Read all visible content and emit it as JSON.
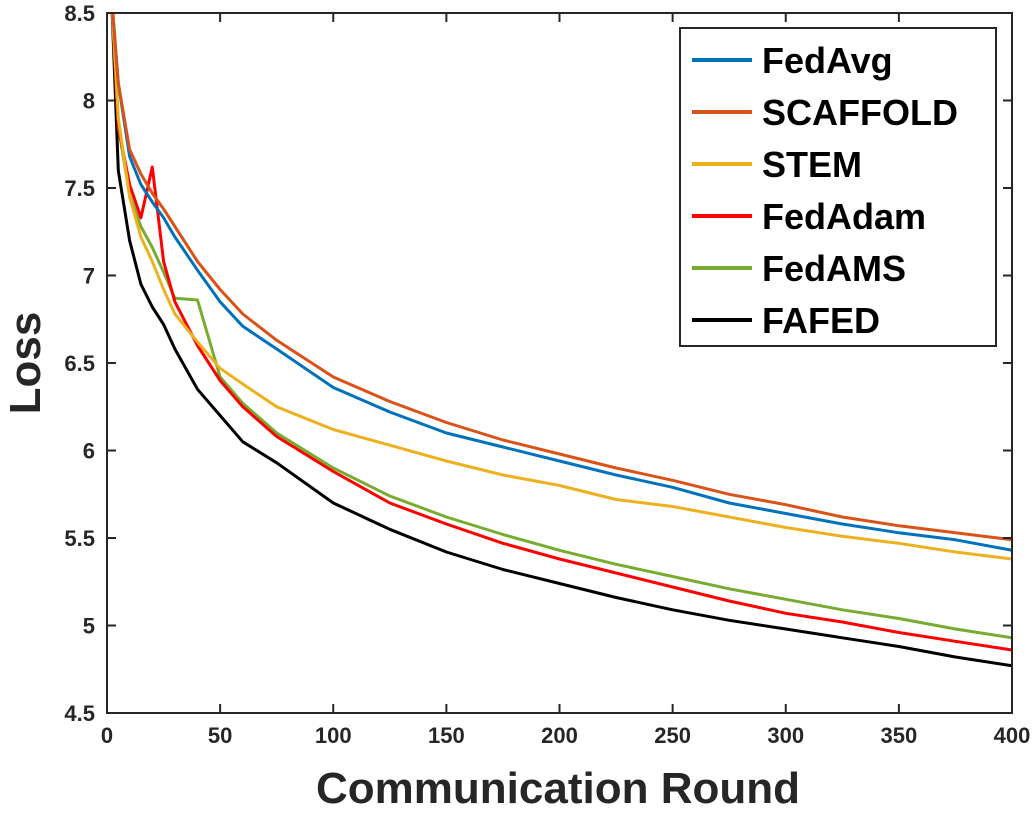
{
  "chart_data": {
    "type": "line",
    "title": "",
    "xlabel": "Communication Round",
    "ylabel": "Loss",
    "xlim": [
      0,
      400
    ],
    "ylim": [
      4.5,
      8.5
    ],
    "xticks": [
      0,
      50,
      100,
      150,
      200,
      250,
      300,
      350,
      400
    ],
    "yticks": [
      4.5,
      5,
      5.5,
      6,
      6.5,
      7,
      7.5,
      8,
      8.5
    ],
    "xtick_labels": [
      "0",
      "50",
      "100",
      "150",
      "200",
      "250",
      "300",
      "350",
      "400"
    ],
    "ytick_labels": [
      "4.5",
      "5",
      "5.5",
      "6",
      "6.5",
      "7",
      "7.5",
      "8",
      "8.5"
    ],
    "grid": false,
    "legend_position": "top-right",
    "x": [
      2,
      5,
      10,
      15,
      20,
      25,
      30,
      40,
      50,
      60,
      75,
      100,
      125,
      150,
      175,
      200,
      225,
      250,
      275,
      300,
      325,
      350,
      375,
      400
    ],
    "series": [
      {
        "name": "FedAvg",
        "color": "#0072BD",
        "values": [
          8.6,
          8.1,
          7.68,
          7.52,
          7.42,
          7.33,
          7.22,
          7.03,
          6.85,
          6.71,
          6.58,
          6.36,
          6.22,
          6.1,
          6.02,
          5.94,
          5.86,
          5.79,
          5.7,
          5.64,
          5.58,
          5.53,
          5.49,
          5.43
        ]
      },
      {
        "name": "SCAFFOLD",
        "color": "#D95319",
        "values": [
          8.6,
          8.1,
          7.72,
          7.58,
          7.47,
          7.38,
          7.28,
          7.08,
          6.92,
          6.78,
          6.63,
          6.42,
          6.28,
          6.16,
          6.06,
          5.98,
          5.9,
          5.83,
          5.75,
          5.69,
          5.62,
          5.57,
          5.53,
          5.49
        ]
      },
      {
        "name": "STEM",
        "color": "#EDB120",
        "values": [
          8.6,
          7.9,
          7.45,
          7.22,
          7.08,
          6.92,
          6.78,
          6.62,
          6.47,
          6.38,
          6.25,
          6.12,
          6.03,
          5.94,
          5.86,
          5.8,
          5.72,
          5.68,
          5.62,
          5.56,
          5.51,
          5.47,
          5.42,
          5.38
        ]
      },
      {
        "name": "FedAdam",
        "color": "#FF0000",
        "values": [
          8.6,
          7.85,
          7.52,
          7.33,
          7.62,
          7.08,
          6.85,
          6.6,
          6.4,
          6.25,
          6.08,
          5.88,
          5.7,
          5.58,
          5.47,
          5.38,
          5.3,
          5.22,
          5.14,
          5.07,
          5.02,
          4.96,
          4.91,
          4.86
        ]
      },
      {
        "name": "FedAMS",
        "color": "#77AC30",
        "values": [
          8.6,
          7.85,
          7.46,
          7.28,
          7.16,
          7.02,
          6.87,
          6.86,
          6.42,
          6.27,
          6.1,
          5.9,
          5.74,
          5.62,
          5.52,
          5.43,
          5.35,
          5.28,
          5.21,
          5.15,
          5.09,
          5.04,
          4.98,
          4.93
        ]
      },
      {
        "name": "FAFED",
        "color": "#000000",
        "values": [
          8.6,
          7.6,
          7.2,
          6.95,
          6.82,
          6.72,
          6.58,
          6.35,
          6.2,
          6.05,
          5.93,
          5.7,
          5.55,
          5.42,
          5.32,
          5.24,
          5.16,
          5.09,
          5.03,
          4.98,
          4.93,
          4.88,
          4.82,
          4.77
        ]
      }
    ]
  }
}
